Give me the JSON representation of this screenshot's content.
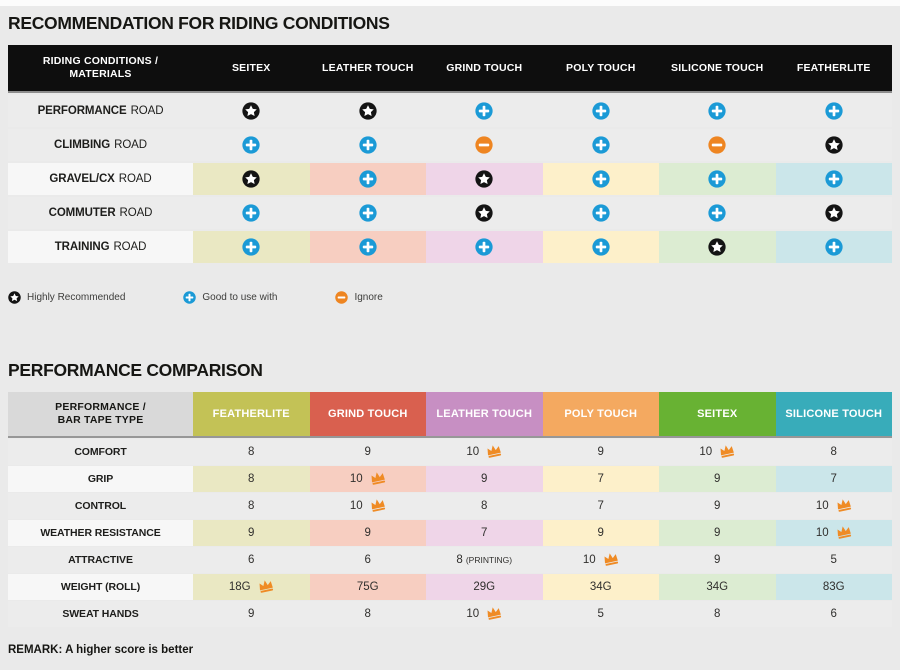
{
  "colors": {
    "page_bg": "#eaeaea",
    "table1_header_bg": "#0e0e0e",
    "row_gray": "#ececec",
    "row_light": "#f7f7f7",
    "label_header_bg": "#d9d9d9",
    "plus_blue": "#1b9ad6",
    "minus_orange": "#ee8521",
    "star_black": "#141414",
    "crown_orange": "#ef8b25",
    "column_tints": [
      "#eae8c3",
      "#f7cec1",
      "#efd5e8",
      "#fdf0ca",
      "#dcecd2",
      "#cbe6ea"
    ],
    "material_colors": {
      "FEATHERLITE": "#c3c256",
      "GRIND TOUCH": "#d9604f",
      "LEATHER TOUCH": "#c78fc3",
      "POLY TOUCH": "#f4a960",
      "SEITEX": "#68b233",
      "SILICONE TOUCH": "#38acba"
    }
  },
  "chart_data": [
    {
      "type": "table",
      "title": "RECOMMENDATION FOR RIDING CONDITIONS",
      "row_header_lines": [
        "RIDING CONDITIONS /",
        "MATERIALS"
      ],
      "columns": [
        "SEITEX",
        "LEATHER TOUCH",
        "GRIND TOUCH",
        "POLY TOUCH",
        "SILICONE TOUCH",
        "FEATHERLITE"
      ],
      "rows": [
        {
          "condition": "PERFORMANCE",
          "category": "ROAD",
          "tinted": false,
          "ratings": [
            "star",
            "star",
            "plus",
            "plus",
            "plus",
            "plus"
          ]
        },
        {
          "condition": "CLIMBING",
          "category": "ROAD",
          "tinted": false,
          "ratings": [
            "plus",
            "plus",
            "minus",
            "plus",
            "minus",
            "star"
          ]
        },
        {
          "condition": "GRAVEL/CX",
          "category": "ROAD",
          "tinted": true,
          "ratings": [
            "star",
            "plus",
            "star",
            "plus",
            "plus",
            "plus"
          ]
        },
        {
          "condition": "COMMUTER",
          "category": "ROAD",
          "tinted": false,
          "ratings": [
            "plus",
            "plus",
            "star",
            "plus",
            "plus",
            "star"
          ]
        },
        {
          "condition": "TRAINING",
          "category": "ROAD",
          "tinted": true,
          "ratings": [
            "plus",
            "plus",
            "plus",
            "plus",
            "star",
            "plus"
          ]
        }
      ],
      "legend": [
        {
          "icon": "star",
          "label": "Highly Recommended"
        },
        {
          "icon": "plus",
          "label": "Good to use with"
        },
        {
          "icon": "minus",
          "label": "Ignore"
        }
      ]
    },
    {
      "type": "table",
      "title": "PERFORMANCE COMPARISON",
      "row_header_lines": [
        "PERFORMANCE /",
        "BAR TAPE TYPE"
      ],
      "columns": [
        "FEATHERLITE",
        "GRIND TOUCH",
        "LEATHER TOUCH",
        "POLY TOUCH",
        "SEITEX",
        "SILICONE TOUCH"
      ],
      "rows": [
        {
          "metric": "COMFORT",
          "tinted": false,
          "values": [
            {
              "v": "8"
            },
            {
              "v": "9"
            },
            {
              "v": "10",
              "crown": true
            },
            {
              "v": "9"
            },
            {
              "v": "10",
              "crown": true
            },
            {
              "v": "8"
            }
          ]
        },
        {
          "metric": "GRIP",
          "tinted": true,
          "values": [
            {
              "v": "8"
            },
            {
              "v": "10",
              "crown": true
            },
            {
              "v": "9"
            },
            {
              "v": "7"
            },
            {
              "v": "9"
            },
            {
              "v": "7"
            }
          ]
        },
        {
          "metric": "CONTROL",
          "tinted": false,
          "values": [
            {
              "v": "8"
            },
            {
              "v": "10",
              "crown": true
            },
            {
              "v": "8"
            },
            {
              "v": "7"
            },
            {
              "v": "9"
            },
            {
              "v": "10",
              "crown": true
            }
          ]
        },
        {
          "metric": "WEATHER RESISTANCE",
          "tinted": true,
          "values": [
            {
              "v": "9"
            },
            {
              "v": "9"
            },
            {
              "v": "7"
            },
            {
              "v": "9"
            },
            {
              "v": "9"
            },
            {
              "v": "10",
              "crown": true
            }
          ]
        },
        {
          "metric": "ATTRACTIVE",
          "tinted": false,
          "values": [
            {
              "v": "6"
            },
            {
              "v": "6"
            },
            {
              "v": "8",
              "note": "(PRINTING)"
            },
            {
              "v": "10",
              "crown": true
            },
            {
              "v": "9"
            },
            {
              "v": "5"
            }
          ]
        },
        {
          "metric": "WEIGHT (ROLL)",
          "tinted": true,
          "values": [
            {
              "v": "18G",
              "crown": true
            },
            {
              "v": "75G"
            },
            {
              "v": "29G"
            },
            {
              "v": "34G"
            },
            {
              "v": "34G"
            },
            {
              "v": "83G"
            }
          ]
        },
        {
          "metric": "SWEAT HANDS",
          "tinted": false,
          "values": [
            {
              "v": "9"
            },
            {
              "v": "8"
            },
            {
              "v": "10",
              "crown": true
            },
            {
              "v": "5"
            },
            {
              "v": "8"
            },
            {
              "v": "6"
            }
          ]
        }
      ],
      "remark": "REMARK: A higher score is better"
    }
  ]
}
